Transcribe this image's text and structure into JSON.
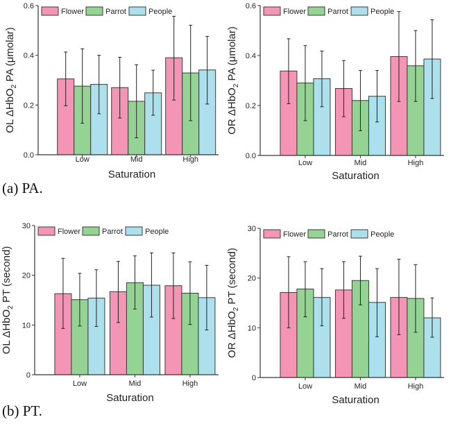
{
  "captions": {
    "pa": "(a) PA.",
    "pt": "(b) PT."
  },
  "colors": {
    "Flower": "#f595b5",
    "Parrot": "#94d394",
    "People": "#abe0ec",
    "axis": "#333333",
    "bar_stroke": "#3a3a3a"
  },
  "chart_data": [
    {
      "id": "ol-pa",
      "type": "bar",
      "title": "",
      "ylabel_prefix": "OL ΔHbO",
      "ylabel_sub": "2",
      "ylabel_suffix": " PA (μmolar)",
      "xlabel": "Saturation",
      "categories": [
        "Low",
        "Mid",
        "High"
      ],
      "ylim": [
        0,
        0.6
      ],
      "yticks": [
        0.0,
        0.2,
        0.4,
        0.6
      ],
      "ytick_labels": [
        "0.0",
        "0.2",
        "0.4",
        "0.6"
      ],
      "legend": {
        "entries": [
          "Flower",
          "Parrot",
          "People"
        ],
        "placement": "top-left"
      },
      "series": [
        {
          "name": "Flower",
          "values": [
            0.305,
            0.27,
            0.39
          ],
          "err_low": [
            0.197,
            0.148,
            0.22
          ],
          "err_high": [
            0.413,
            0.392,
            0.557
          ]
        },
        {
          "name": "Parrot",
          "values": [
            0.276,
            0.215,
            0.329
          ],
          "err_low": [
            0.127,
            0.068,
            0.137
          ],
          "err_high": [
            0.426,
            0.362,
            0.521
          ]
        },
        {
          "name": "People",
          "values": [
            0.283,
            0.249,
            0.341
          ],
          "err_low": [
            0.165,
            0.159,
            0.204
          ],
          "err_high": [
            0.4,
            0.34,
            0.476
          ]
        }
      ]
    },
    {
      "id": "or-pa",
      "type": "bar",
      "title": "",
      "ylabel_prefix": "OR ΔHbO",
      "ylabel_sub": "2",
      "ylabel_suffix": " PA (μmolar)",
      "xlabel": "Saturation",
      "categories": [
        "Low",
        "Mid",
        "High"
      ],
      "ylim": [
        0,
        0.6
      ],
      "yticks": [
        0.0,
        0.2,
        0.4,
        0.6
      ],
      "ytick_labels": [
        "0.0",
        "0.2",
        "0.4",
        "0.6"
      ],
      "legend": {
        "entries": [
          "Flower",
          "Parrot",
          "People"
        ],
        "placement": "top-left"
      },
      "series": [
        {
          "name": "Flower",
          "values": [
            0.338,
            0.268,
            0.396
          ],
          "err_low": [
            0.207,
            0.155,
            0.216
          ],
          "err_high": [
            0.467,
            0.38,
            0.576
          ]
        },
        {
          "name": "Parrot",
          "values": [
            0.29,
            0.22,
            0.359
          ],
          "err_low": [
            0.139,
            0.099,
            0.216
          ],
          "err_high": [
            0.44,
            0.34,
            0.5
          ]
        },
        {
          "name": "People",
          "values": [
            0.307,
            0.237,
            0.386
          ],
          "err_low": [
            0.195,
            0.134,
            0.228
          ],
          "err_high": [
            0.418,
            0.34,
            0.543
          ]
        }
      ]
    },
    {
      "id": "ol-pt",
      "type": "bar",
      "title": "",
      "ylabel_prefix": "OL ΔHbO",
      "ylabel_sub": "2",
      "ylabel_suffix": " PT (second)",
      "xlabel": "Saturation",
      "categories": [
        "Low",
        "Mid",
        "High"
      ],
      "ylim": [
        0,
        30
      ],
      "yticks": [
        0,
        10,
        20,
        30
      ],
      "ytick_labels": [
        "0",
        "10",
        "20",
        "30"
      ],
      "legend": {
        "entries": [
          "Flower",
          "Parrot",
          "People"
        ],
        "placement": "top-left"
      },
      "series": [
        {
          "name": "Flower",
          "values": [
            16.3,
            16.7,
            17.9
          ],
          "err_low": [
            9.3,
            10.5,
            11.3
          ],
          "err_high": [
            23.4,
            22.8,
            24.5
          ]
        },
        {
          "name": "Parrot",
          "values": [
            15.1,
            18.5,
            16.4
          ],
          "err_low": [
            9.8,
            13.2,
            10.1
          ],
          "err_high": [
            20.4,
            23.9,
            22.7
          ]
        },
        {
          "name": "People",
          "values": [
            15.4,
            18.0,
            15.5
          ],
          "err_low": [
            9.7,
            11.6,
            9.0
          ],
          "err_high": [
            21.1,
            24.5,
            22.0
          ]
        }
      ]
    },
    {
      "id": "or-pt",
      "type": "bar",
      "title": "",
      "ylabel_prefix": "OR ΔHbO",
      "ylabel_sub": "2",
      "ylabel_suffix": " PT (second)",
      "xlabel": "Saturation",
      "categories": [
        "Low",
        "Mid",
        "High"
      ],
      "ylim": [
        0,
        30
      ],
      "yticks": [
        0,
        10,
        20,
        30
      ],
      "ytick_labels": [
        "0",
        "10",
        "20",
        "30"
      ],
      "legend": {
        "entries": [
          "Flower",
          "Parrot",
          "People"
        ],
        "placement": "top-left"
      },
      "series": [
        {
          "name": "Flower",
          "values": [
            17.1,
            17.6,
            16.1
          ],
          "err_low": [
            10.0,
            11.9,
            8.6
          ],
          "err_high": [
            24.3,
            23.3,
            23.8
          ]
        },
        {
          "name": "Parrot",
          "values": [
            17.8,
            19.5,
            15.9
          ],
          "err_low": [
            12.2,
            14.6,
            9.1
          ],
          "err_high": [
            23.3,
            24.4,
            22.7
          ]
        },
        {
          "name": "People",
          "values": [
            16.1,
            15.1,
            12.0
          ],
          "err_low": [
            10.4,
            8.2,
            8.1
          ],
          "err_high": [
            21.9,
            21.9,
            16.0
          ]
        }
      ]
    }
  ]
}
